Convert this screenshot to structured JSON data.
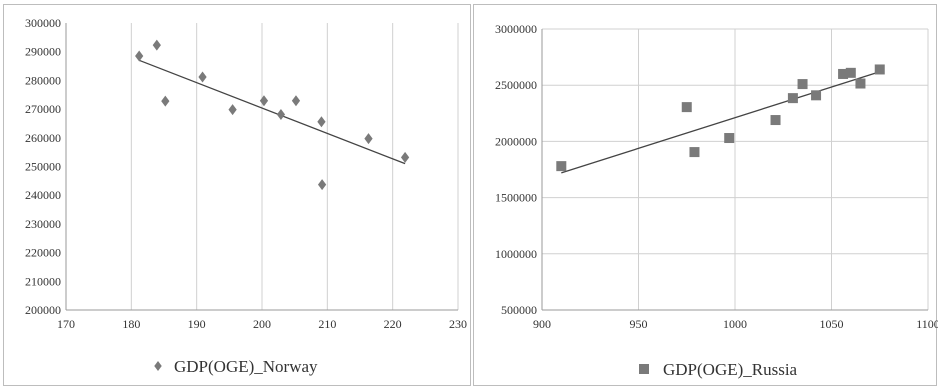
{
  "chart_data": [
    {
      "type": "scatter",
      "title": "",
      "xlabel": "",
      "ylabel": "",
      "xlim": [
        170,
        230
      ],
      "ylim": [
        200000,
        300000
      ],
      "x_ticks": [
        "170",
        "180",
        "190",
        "200",
        "210",
        "220",
        "230"
      ],
      "y_ticks": [
        "200000",
        "210000",
        "220000",
        "230000",
        "240000",
        "250000",
        "260000",
        "270000",
        "280000",
        "290000",
        "300000"
      ],
      "grid": "vertical",
      "legend_position": "bottom",
      "marker": "diamond",
      "marker_color": "#7a7a7a",
      "series": [
        {
          "name": "GDP(OGE)_Norway",
          "points": [
            [
              181.2,
              288500
            ],
            [
              183.9,
              292300
            ],
            [
              185.2,
              272800
            ],
            [
              190.9,
              281200
            ],
            [
              195.5,
              269800
            ],
            [
              200.3,
              272900
            ],
            [
              202.9,
              268100
            ],
            [
              205.2,
              272900
            ],
            [
              209.1,
              265600
            ],
            [
              209.2,
              243700
            ],
            [
              216.3,
              259700
            ],
            [
              221.9,
              253200
            ]
          ],
          "trendline": [
            [
              181.2,
              287000
            ],
            [
              221.9,
              251000
            ]
          ]
        }
      ]
    },
    {
      "type": "scatter",
      "title": "",
      "xlabel": "",
      "ylabel": "",
      "xlim": [
        900,
        1100
      ],
      "ylim": [
        500000,
        3000000
      ],
      "x_ticks": [
        "900",
        "950",
        "1000",
        "1050",
        "1100"
      ],
      "y_ticks": [
        "500000",
        "1000000",
        "1500000",
        "2000000",
        "2500000",
        "3000000"
      ],
      "grid": "both",
      "legend_position": "bottom",
      "marker": "square",
      "marker_color": "#7a7a7a",
      "series": [
        {
          "name": "GDP(OGE)_Russia",
          "points": [
            [
              910,
              1780000
            ],
            [
              975,
              2305000
            ],
            [
              979,
              1905000
            ],
            [
              997,
              2030000
            ],
            [
              1021,
              2190000
            ],
            [
              1030,
              2385000
            ],
            [
              1035,
              2510000
            ],
            [
              1042,
              2410000
            ],
            [
              1056,
              2600000
            ],
            [
              1060,
              2610000
            ],
            [
              1065,
              2515000
            ],
            [
              1075,
              2640000
            ]
          ],
          "trendline": [
            [
              910,
              1720000
            ],
            [
              1075,
              2620000
            ]
          ]
        }
      ]
    }
  ]
}
